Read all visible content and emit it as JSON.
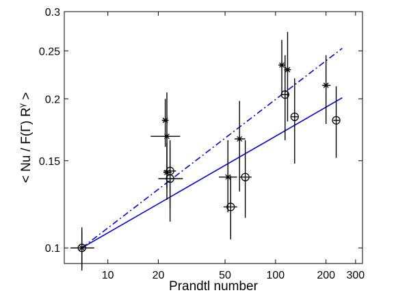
{
  "chart_data": {
    "type": "scatter",
    "xscale": "log",
    "yscale": "log",
    "xlim": [
      5.5,
      330
    ],
    "ylim": [
      0.093,
      0.3
    ],
    "xlabel": "Prandtl number",
    "ylabel": "< Nu / F(Γ) R^γ >",
    "ylabel_parts": {
      "main": "< Nu / F(Γ) R",
      "sup": "γ",
      "end": " >"
    },
    "xticks": [
      10,
      20,
      50,
      100,
      200,
      300
    ],
    "xtick_labels": [
      "10",
      "20",
      "50",
      "100",
      "200",
      "300"
    ],
    "yticks": [
      0.1,
      0.15,
      0.2,
      0.25,
      0.3
    ],
    "ytick_labels": [
      "0.1",
      "0.15",
      "0.2",
      "0.25",
      "0.3"
    ],
    "grid": false,
    "series": [
      {
        "marker": "asterisk",
        "color": "#000000",
        "points": [
          {
            "x": 7.0,
            "y": 0.1,
            "xerr": [
              6.0,
              8.2
            ],
            "yerr": [
              0.09,
              0.108
            ]
          },
          {
            "x": 22.0,
            "y": 0.181,
            "xerr": [
              21.2,
              22.8
            ],
            "yerr": [
              0.16,
              0.2
            ]
          },
          {
            "x": 22.5,
            "y": 0.168,
            "xerr": [
              18.0,
              27.0
            ],
            "yerr": [
              0.132,
              0.206
            ]
          },
          {
            "x": 22.5,
            "y": 0.142,
            "xerr": [
              21.5,
              24.0
            ],
            "yerr": [
              0.125,
              0.163
            ]
          },
          {
            "x": 52.0,
            "y": 0.139,
            "xerr": [
              46.0,
              59.0
            ],
            "yerr": [
              0.118,
              0.165
            ]
          },
          {
            "x": 61.0,
            "y": 0.166,
            "xerr": [
              57.0,
              66.0
            ],
            "yerr": [
              0.13,
              0.198
            ]
          },
          {
            "x": 109.0,
            "y": 0.234,
            "xerr": [
              105.0,
              113.0
            ],
            "yerr": [
              0.205,
              0.263
            ]
          },
          {
            "x": 118.0,
            "y": 0.229,
            "xerr": [
              113.0,
              123.0
            ],
            "yerr": [
              0.18,
              0.273
            ]
          },
          {
            "x": 200.0,
            "y": 0.213,
            "xerr": [
              190.0,
              213.0
            ],
            "yerr": [
              0.178,
              0.245
            ]
          }
        ]
      },
      {
        "marker": "circle",
        "color": "#000000",
        "points": [
          {
            "x": 7.0,
            "y": 0.1,
            "xerr": [
              6.0,
              8.3
            ],
            "yerr": [
              0.091,
              0.11
            ]
          },
          {
            "x": 23.5,
            "y": 0.143,
            "xerr": [
              21.5,
              25.5
            ],
            "yerr": [
              0.12,
              0.165
            ]
          },
          {
            "x": 23.5,
            "y": 0.138,
            "xerr": [
              20.0,
              28.0
            ],
            "yerr": [
              0.113,
              0.16
            ]
          },
          {
            "x": 54.0,
            "y": 0.121,
            "xerr": [
              49.0,
              59.0
            ],
            "yerr": [
              0.104,
              0.14
            ]
          },
          {
            "x": 66.0,
            "y": 0.139,
            "xerr": [
              61.0,
              72.0
            ],
            "yerr": [
              0.115,
              0.165
            ]
          },
          {
            "x": 114.0,
            "y": 0.204,
            "xerr": [
              108.0,
              121.0
            ],
            "yerr": [
              0.165,
              0.245
            ]
          },
          {
            "x": 130.0,
            "y": 0.184,
            "xerr": [
              124.0,
              137.0
            ],
            "yerr": [
              0.148,
              0.22
            ]
          },
          {
            "x": 230.0,
            "y": 0.181,
            "xerr": [
              221.0,
              240.0
            ],
            "yerr": [
              0.152,
              0.212
            ]
          }
        ]
      }
    ],
    "fit_lines": [
      {
        "style": "dash-dot",
        "color": "#0000dd",
        "x": [
          7.0,
          250.0
        ],
        "y": [
          0.1,
          0.253
        ]
      },
      {
        "style": "solid",
        "color": "#0000dd",
        "x": [
          7.0,
          250.0
        ],
        "y": [
          0.1,
          0.201
        ]
      }
    ]
  }
}
